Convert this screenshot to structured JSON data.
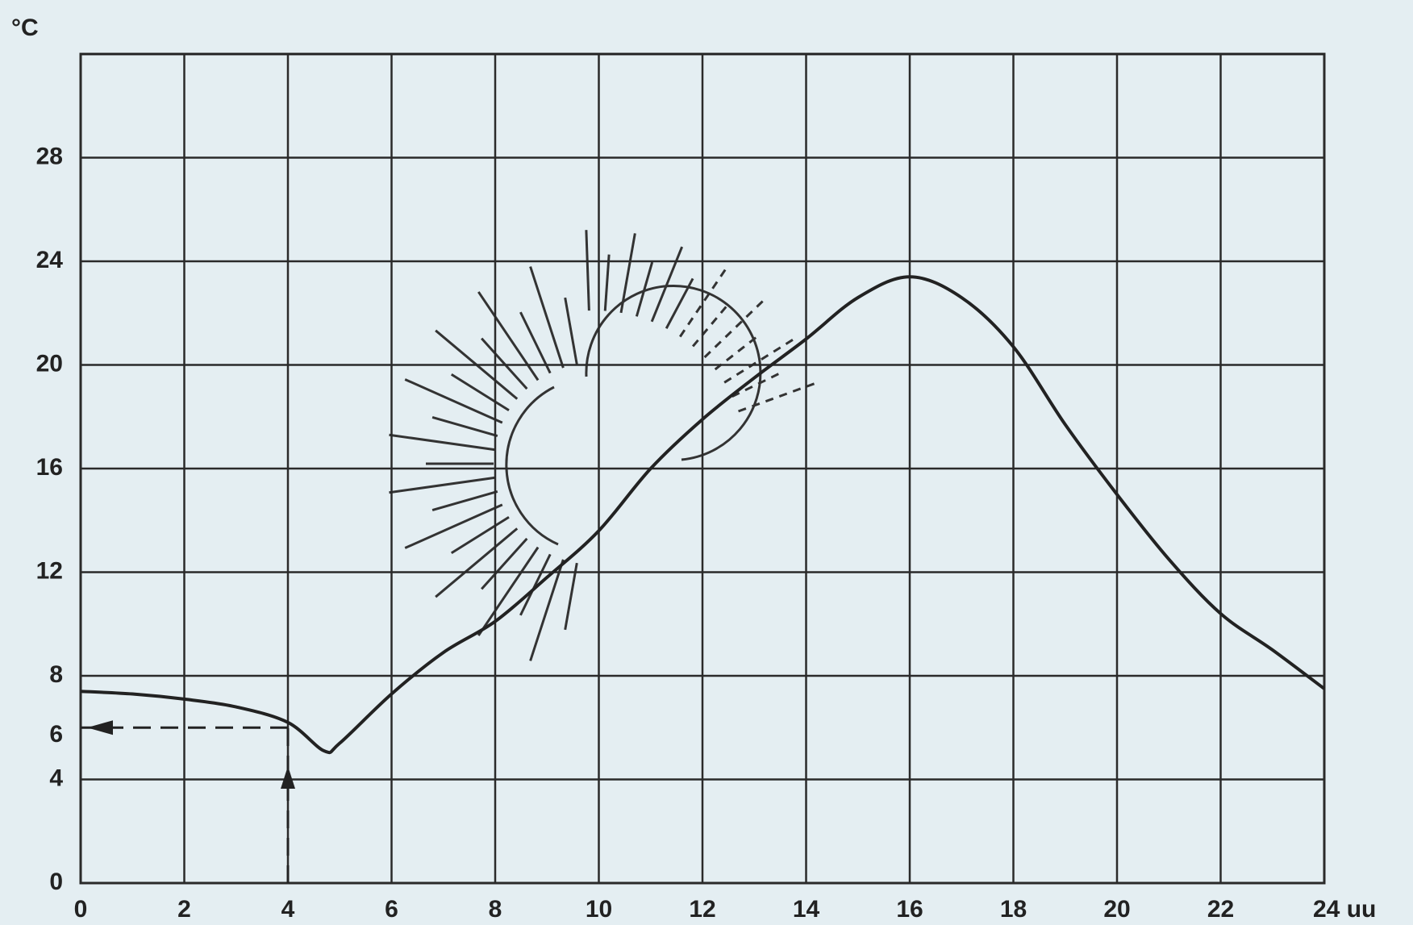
{
  "chart_data": {
    "type": "line",
    "ylabel": "°C",
    "x": [
      0,
      1,
      2,
      3,
      4,
      4.7,
      5,
      6,
      7,
      8,
      9,
      10,
      11,
      12,
      13,
      14,
      15,
      16,
      17,
      18,
      19,
      20,
      21,
      22,
      23,
      24
    ],
    "series": [
      {
        "color": "#222222",
        "values": [
          7.4,
          7.3,
          7.1,
          6.8,
          6.2,
          5.1,
          5.4,
          7.3,
          8.9,
          10.1,
          11.8,
          13.6,
          16,
          17.9,
          19.5,
          21,
          22.6,
          23.4,
          22.6,
          20.7,
          17.7,
          15,
          12.5,
          10.4,
          9,
          7.5
        ]
      }
    ],
    "xlim": [
      0,
      24
    ],
    "xticks": [
      0,
      2,
      4,
      6,
      8,
      10,
      12,
      14,
      16,
      18,
      20,
      22,
      {
        "value": 24,
        "label": "24 uu"
      }
    ],
    "ylim": [
      0,
      32
    ],
    "yticks": [
      0,
      4,
      8,
      12,
      16,
      20,
      24,
      28
    ],
    "grid": true,
    "annotation": {
      "x": 4,
      "y": 6
    }
  }
}
